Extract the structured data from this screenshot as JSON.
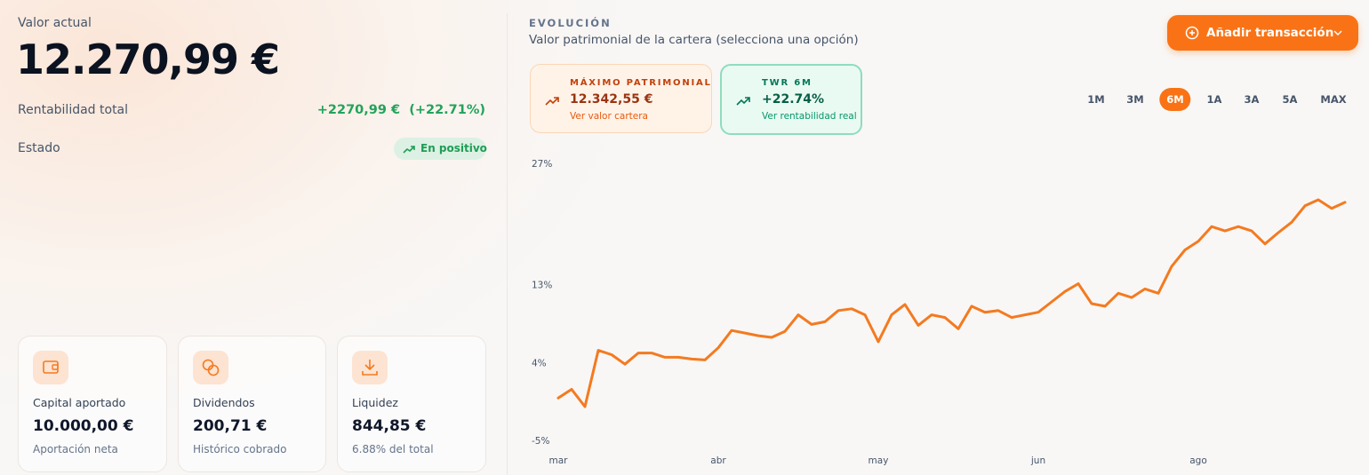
{
  "summary": {
    "label": "Valor actual",
    "value": "12.270,99 €",
    "return_label": "Rentabilidad total",
    "return_value": "+2270,99 €",
    "return_percent": "(+22.71%)",
    "status_label": "Estado",
    "status_badge": "En positivo"
  },
  "cards": [
    {
      "title": "Capital aportado",
      "value": "10.000,00 €",
      "note": "Aportación neta"
    },
    {
      "title": "Dividendos",
      "value": "200,71 €",
      "note": "Histórico cobrado"
    },
    {
      "title": "Liquidez",
      "value": "844,85 €",
      "note": "6.88% del total"
    }
  ],
  "evolution": {
    "eyebrow": "EVOLUCIÓN",
    "subtitle": "Valor patrimonial de la cartera (selecciona una opción)",
    "button": "Añadir transacción",
    "stats": [
      {
        "label": "MÁXIMO PATRIMONIAL",
        "value": "12.342,55 €",
        "link": "Ver valor cartera"
      },
      {
        "label": "TWR 6M",
        "value": "+22.74%",
        "link": "Ver rentabilidad real"
      }
    ],
    "ranges": [
      "1M",
      "3M",
      "6M",
      "1A",
      "3A",
      "5A",
      "MAX"
    ],
    "active_range": 2
  },
  "chart_data": {
    "type": "line",
    "color": "#f47a20",
    "ylim": [
      -5,
      27
    ],
    "yticks": [
      {
        "value": 27,
        "label": "27%"
      },
      {
        "value": 13,
        "label": "13%"
      },
      {
        "value": 4,
        "label": "4%"
      },
      {
        "value": -5,
        "label": "-5%"
      }
    ],
    "xlim": [
      0,
      59
    ],
    "xticks": [
      {
        "value": 0,
        "label": "mar"
      },
      {
        "value": 12,
        "label": "abr"
      },
      {
        "value": 24,
        "label": "may"
      },
      {
        "value": 36,
        "label": "jun"
      },
      {
        "value": 48,
        "label": "ago"
      }
    ],
    "values": [
      0.0,
      1.0,
      -1.0,
      5.5,
      5.0,
      3.9,
      5.2,
      5.2,
      4.7,
      4.7,
      4.5,
      4.4,
      5.8,
      7.8,
      7.5,
      7.2,
      7.0,
      7.7,
      9.6,
      8.5,
      8.8,
      10.1,
      10.3,
      9.6,
      6.5,
      9.6,
      10.8,
      8.4,
      9.6,
      9.3,
      8.0,
      10.6,
      9.9,
      10.1,
      9.3,
      9.6,
      9.9,
      11.1,
      12.3,
      13.2,
      10.9,
      10.6,
      12.1,
      11.6,
      12.6,
      12.1,
      15.2,
      17.1,
      18.1,
      19.8,
      19.3,
      19.8,
      19.3,
      17.8,
      19.1,
      20.3,
      22.2,
      22.9,
      21.9,
      22.6
    ]
  }
}
